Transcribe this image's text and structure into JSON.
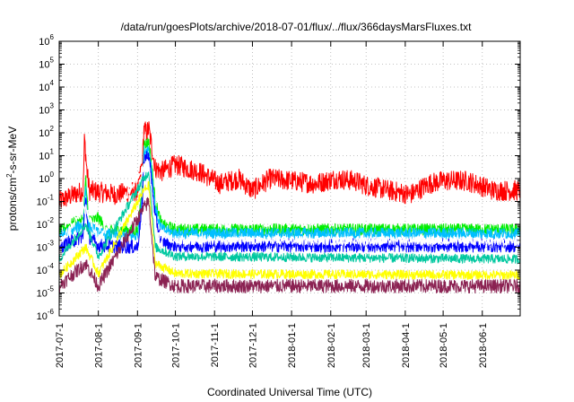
{
  "chart_data": {
    "type": "line",
    "title": "/data/run/goesPlots/archive/2018-07-01/flux/../flux/366daysMarsFluxes.txt",
    "xlabel": "Coordinated Universal Time (UTC)",
    "ylabel": {
      "prefix": "protons/cm",
      "sup": "2",
      "suffix": "-s-sr-MeV"
    },
    "yscale": "log",
    "ylim": [
      1e-06,
      1000000.0
    ],
    "xlim": [
      "2017-07-01",
      "2018-07-01"
    ],
    "grid": true,
    "x_ticks": [
      "2017-07-1",
      "2017-08-1",
      "2017-09-1",
      "2017-10-1",
      "2017-11-1",
      "2017-12-1",
      "2018-01-1",
      "2018-02-1",
      "2018-03-1",
      "2018-04-1",
      "2018-05-1",
      "2018-06-1"
    ],
    "y_ticks": [
      {
        "base": "10",
        "exp": "-6",
        "value": 1e-06
      },
      {
        "base": "10",
        "exp": "-5",
        "value": 1e-05
      },
      {
        "base": "10",
        "exp": "-4",
        "value": 0.0001
      },
      {
        "base": "10",
        "exp": "-3",
        "value": 0.001
      },
      {
        "base": "10",
        "exp": "-2",
        "value": 0.01
      },
      {
        "base": "10",
        "exp": "-1",
        "value": 0.1
      },
      {
        "base": "10",
        "exp": "0",
        "value": 1
      },
      {
        "base": "10",
        "exp": "1",
        "value": 10
      },
      {
        "base": "10",
        "exp": "2",
        "value": 100
      },
      {
        "base": "10",
        "exp": "3",
        "value": 1000
      },
      {
        "base": "10",
        "exp": "4",
        "value": 10000
      },
      {
        "base": "10",
        "exp": "5",
        "value": 100000
      },
      {
        "base": "10",
        "exp": "6",
        "value": 1000000
      }
    ],
    "series": [
      {
        "color": "#ff0000",
        "noise": 0.45,
        "x": [
          "2017-07-01",
          "2017-07-20",
          "2017-07-21",
          "2017-07-23",
          "2017-07-25",
          "2017-08-15",
          "2017-09-01",
          "2017-09-05",
          "2017-09-06",
          "2017-09-08",
          "2017-09-10",
          "2017-09-12",
          "2017-09-15",
          "2017-09-20",
          "2017-10-01",
          "2017-10-20",
          "2017-11-05",
          "2017-11-20",
          "2017-12-01",
          "2017-12-15",
          "2018-01-01",
          "2018-01-20",
          "2018-02-05",
          "2018-02-20",
          "2018-03-01",
          "2018-03-20",
          "2018-04-05",
          "2018-04-20",
          "2018-05-01",
          "2018-05-20",
          "2018-06-10",
          "2018-07-01"
        ],
        "y": [
          0.1,
          0.3,
          60,
          2,
          0.3,
          0.2,
          0.3,
          5,
          150,
          100,
          150,
          30,
          3,
          2,
          4,
          2,
          0.6,
          1,
          0.3,
          1,
          0.8,
          0.6,
          1,
          0.8,
          0.5,
          0.3,
          0.2,
          0.6,
          0.8,
          0.8,
          0.3,
          0.3
        ]
      },
      {
        "color": "#00ee00",
        "noise": 0.25,
        "x": [
          "2017-07-01",
          "2017-07-20",
          "2017-07-22",
          "2017-07-24",
          "2017-07-28",
          "2017-08-01",
          "2017-08-08",
          "2017-08-20",
          "2017-09-01",
          "2017-09-05",
          "2017-09-06",
          "2017-09-10",
          "2017-09-12",
          "2017-09-15",
          "2017-09-20",
          "2017-10-01",
          "2018-07-01"
        ],
        "y": [
          0.005,
          0.02,
          1,
          0.02,
          0.015,
          0.02,
          0.005,
          0.006,
          0.005,
          0.5,
          30,
          40,
          5,
          0.1,
          0.01,
          0.006,
          0.006
        ]
      },
      {
        "color": "#00bfff",
        "noise": 0.25,
        "x": [
          "2017-07-01",
          "2017-07-20",
          "2017-07-22",
          "2017-07-24",
          "2017-08-01",
          "2017-09-01",
          "2017-09-05",
          "2017-09-06",
          "2017-09-10",
          "2017-09-12",
          "2017-09-15",
          "2017-09-20",
          "2017-10-01",
          "2018-07-01"
        ],
        "y": [
          0.003,
          0.01,
          0.5,
          0.01,
          0.004,
          0.003,
          0.3,
          15,
          20,
          3,
          0.05,
          0.006,
          0.004,
          0.004
        ]
      },
      {
        "color": "#0000ff",
        "noise": 0.3,
        "x": [
          "2017-07-01",
          "2017-07-20",
          "2017-07-22",
          "2017-07-24",
          "2017-08-01",
          "2017-09-01",
          "2017-09-05",
          "2017-09-06",
          "2017-09-10",
          "2017-09-12",
          "2017-09-15",
          "2017-09-20",
          "2017-10-01",
          "2018-07-01"
        ],
        "y": [
          0.001,
          0.003,
          0.2,
          0.003,
          0.0012,
          0.001,
          0.1,
          8,
          10,
          1,
          0.02,
          0.002,
          0.0012,
          0.0012
        ]
      },
      {
        "color": "#ffffff",
        "noise": 0.2,
        "x": [
          "2017-07-01",
          "2017-07-22",
          "2017-08-01",
          "2017-09-06",
          "2017-09-10",
          "2017-09-15",
          "2017-10-01",
          "2018-07-01"
        ],
        "y": [
          0.0015,
          0.05,
          0.002,
          3,
          5,
          0.005,
          0.002,
          0.0018
        ]
      },
      {
        "color": "#00c8a0",
        "noise": 0.2,
        "x": [
          "2017-07-01",
          "2017-07-22",
          "2017-08-01",
          "2017-09-06",
          "2017-09-10",
          "2017-09-15",
          "2017-10-01",
          "2018-07-01"
        ],
        "y": [
          0.0003,
          0.01,
          0.0004,
          1,
          2,
          0.001,
          0.0004,
          0.0003
        ]
      },
      {
        "color": "#ffff00",
        "noise": 0.2,
        "x": [
          "2017-07-01",
          "2017-07-22",
          "2017-08-01",
          "2017-09-06",
          "2017-09-10",
          "2017-09-15",
          "2017-10-01",
          "2018-07-01"
        ],
        "y": [
          6e-05,
          0.001,
          7e-05,
          0.3,
          0.5,
          0.0002,
          7e-05,
          6e-05
        ]
      },
      {
        "color": "#8b2252",
        "noise": 0.3,
        "x": [
          "2017-07-01",
          "2017-07-22",
          "2017-08-01",
          "2017-09-06",
          "2017-09-10",
          "2017-09-15",
          "2017-10-01",
          "2018-07-01"
        ],
        "y": [
          2e-05,
          0.0002,
          2e-05,
          0.05,
          0.1,
          5e-05,
          2e-05,
          2e-05
        ]
      }
    ]
  }
}
